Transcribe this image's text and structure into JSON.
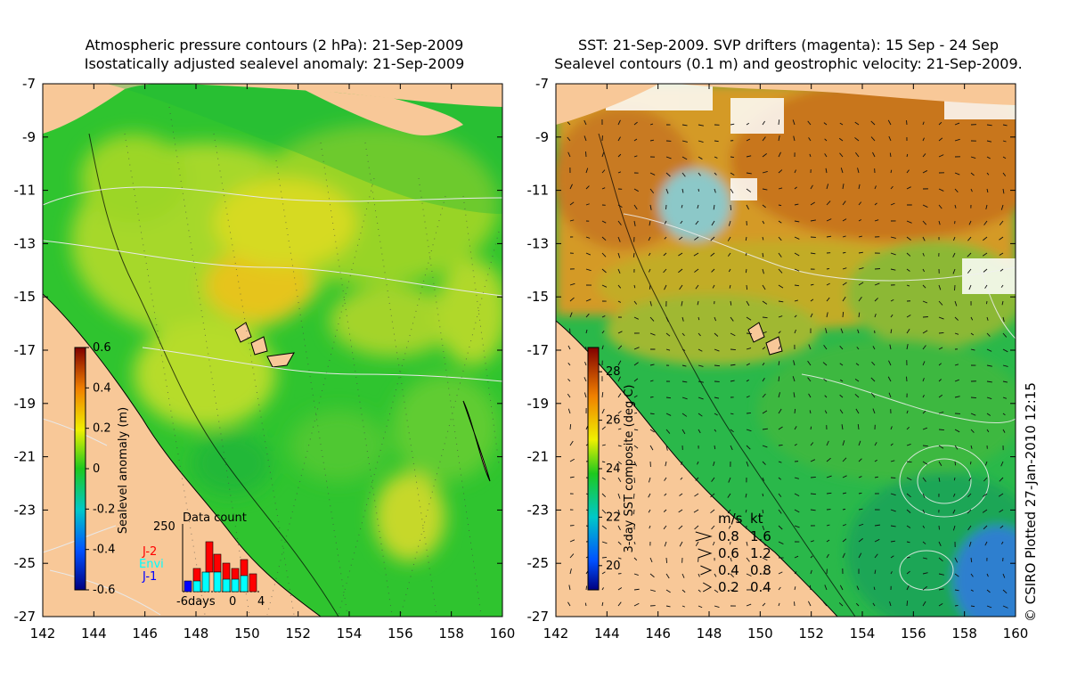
{
  "left_panel": {
    "title_line1": "Atmospheric pressure contours (2 hPa): 21-Sep-2009",
    "title_line2": "Isostatically adjusted sealevel anomaly: 21-Sep-2009",
    "colorbar": {
      "label": "Sealevel anomaly (m)",
      "ticks": [
        "0.6",
        "0.4",
        "0.2",
        "0",
        "-0.2",
        "-0.4",
        "-0.6"
      ],
      "min": -0.6,
      "max": 0.6
    },
    "data_count": {
      "title": "Data count",
      "y_max_label": "250",
      "x_labels": [
        "-6days",
        "0",
        "4"
      ],
      "legend": [
        {
          "name": "J-2",
          "color": "#ff0000"
        },
        {
          "name": "Envi",
          "color": "#00ffff"
        },
        {
          "name": "J-1",
          "color": "#0000ff"
        }
      ]
    }
  },
  "right_panel": {
    "title_line1": "SST: 21-Sep-2009. SVP drifters (magenta): 15 Sep - 24 Sep",
    "title_line2": "Sealevel contours (0.1 m) and geostrophic velocity: 21-Sep-2009.",
    "colorbar": {
      "label": "3-day SST composite (deg C)",
      "ticks": [
        "28",
        "26",
        "24",
        "22",
        "20"
      ],
      "min": 19,
      "max": 29
    },
    "velocity_legend": {
      "header_ms": "m/s",
      "header_kt": "kt",
      "rows": [
        {
          "ms": "0.8",
          "kt": "1.6"
        },
        {
          "ms": "0.6",
          "kt": "1.2"
        },
        {
          "ms": "0.4",
          "kt": "0.8"
        },
        {
          "ms": "0.2",
          "kt": "0.4"
        }
      ]
    }
  },
  "axes": {
    "x_ticks": [
      "142",
      "144",
      "146",
      "148",
      "150",
      "152",
      "154",
      "156",
      "158",
      "160"
    ],
    "y_ticks": [
      "-7",
      "-9",
      "-11",
      "-13",
      "-15",
      "-17",
      "-19",
      "-21",
      "-23",
      "-25",
      "-27"
    ],
    "lon_range": [
      142,
      160
    ],
    "lat_range": [
      -27,
      -7
    ]
  },
  "credit": "© CSIRO Plotted 27-Jan-2010 12:15",
  "colors": {
    "land": "#f8c898",
    "ssh_base": "#2fc42f",
    "sst_warm": "#e08a1e",
    "sst_cool": "#2ab84a"
  }
}
